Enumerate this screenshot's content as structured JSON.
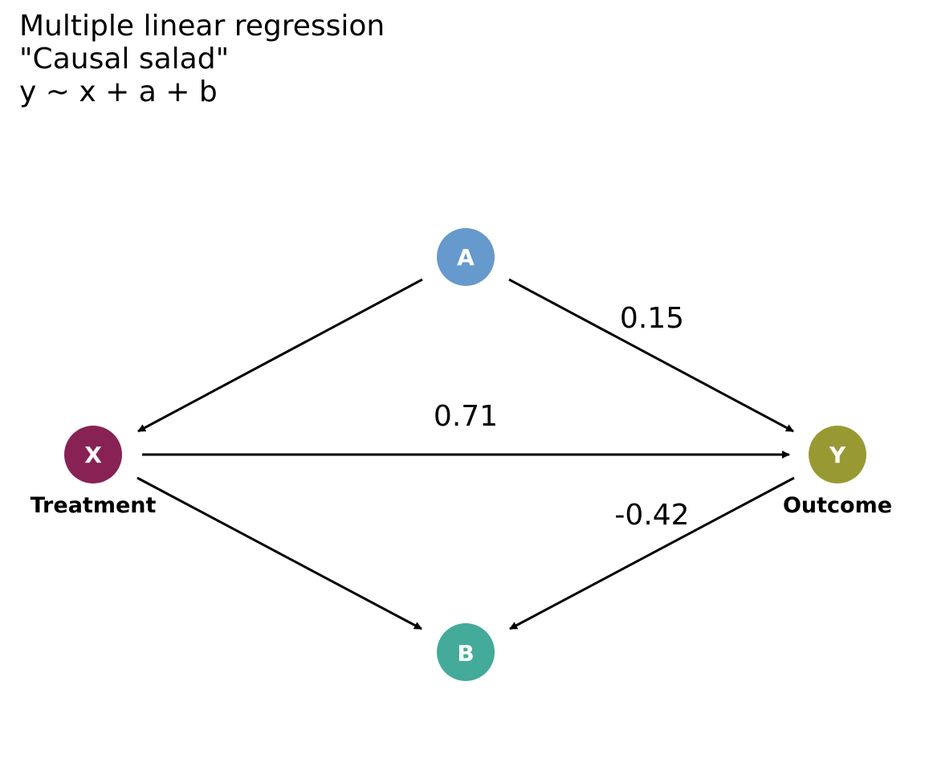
{
  "title": {
    "line1": "Multiple linear regression",
    "line2": "\"Causal salad\"",
    "line3": "y ~ x + a + b"
  },
  "nodes": {
    "a": {
      "letter": "A",
      "caption": "",
      "color": "#6699CC"
    },
    "x": {
      "letter": "X",
      "caption": "Treatment",
      "color": "#882255"
    },
    "y": {
      "letter": "Y",
      "caption": "Outcome",
      "color": "#999933"
    },
    "b": {
      "letter": "B",
      "caption": "",
      "color": "#44AA99"
    }
  },
  "edges": {
    "a_to_x": {
      "from": "A",
      "to": "X",
      "label": ""
    },
    "a_to_y": {
      "from": "A",
      "to": "Y",
      "label": "0.15"
    },
    "x_to_y": {
      "from": "X",
      "to": "Y",
      "label": "0.71"
    },
    "x_to_b": {
      "from": "X",
      "to": "B",
      "label": ""
    },
    "y_to_b": {
      "from": "Y",
      "to": "B",
      "label": "-0.42"
    }
  }
}
